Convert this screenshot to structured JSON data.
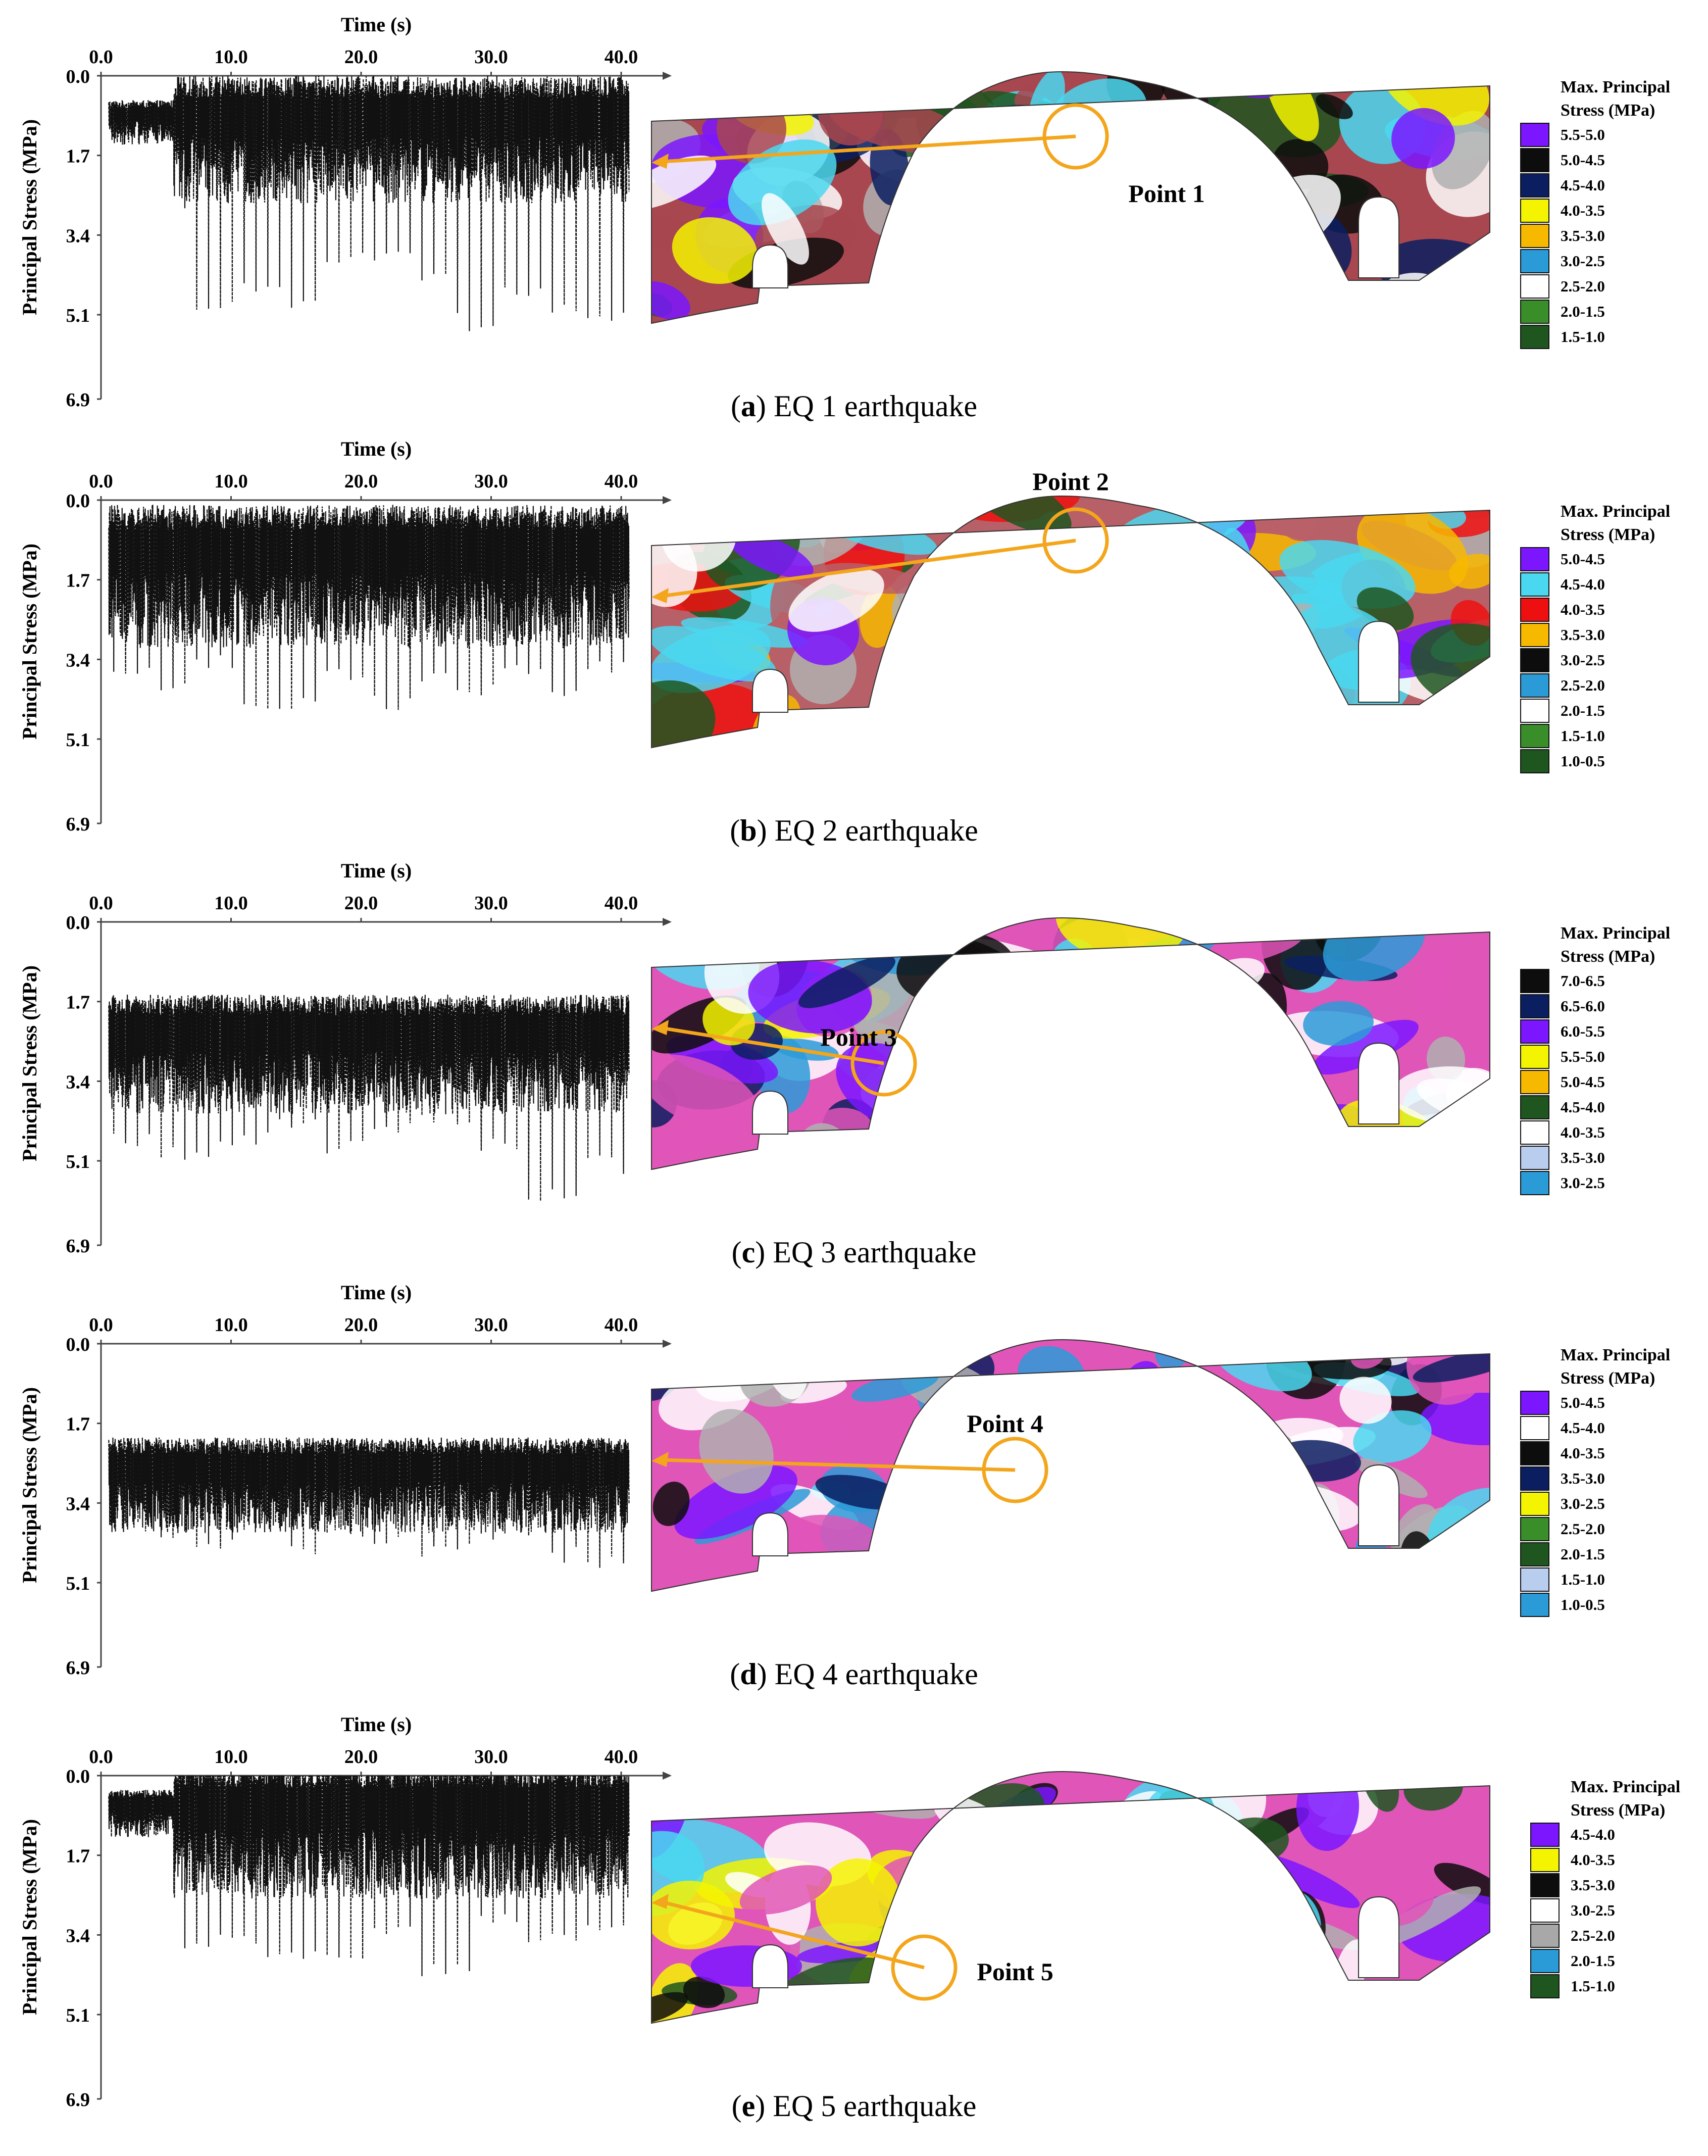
{
  "chart_data": [
    {
      "type": "line",
      "panel_letter": "a",
      "caption": "EQ 1 earthquake",
      "xlabel": "Time (s)",
      "ylabel": "Principal Stress (MPa)",
      "x_ticks": [
        "0.0",
        "10.0",
        "20.0",
        "30.0",
        "40.0"
      ],
      "y_ticks": [
        "0.0",
        "1.7",
        "3.4",
        "5.1",
        "6.9"
      ],
      "xlim": [
        0,
        40
      ],
      "ylim": [
        0,
        6.9
      ],
      "y_axis_inverted": true,
      "series": [
        {
          "name": "",
          "style": "dense-oscillation",
          "base_mean": 0.8,
          "typical_amplitude": 1.6,
          "peak_values": [
            3.5,
            3.0,
            5.0,
            4.7,
            5.2,
            4.0,
            4.0,
            4.5,
            5.5,
            4.8,
            5.2,
            5.3
          ]
        }
      ],
      "stress_contour": {
        "legend_title": [
          "Max. Principal",
          "Stress (MPa)"
        ],
        "annotation": "Point 1",
        "legend": [
          {
            "range": "5.5-5.0",
            "color": "#7b16ff"
          },
          {
            "range": "5.0-4.5",
            "color": "#0d0d0d"
          },
          {
            "range": "4.5-4.0",
            "color": "#0b1f60"
          },
          {
            "range": "4.0-3.5",
            "color": "#f4f400"
          },
          {
            "range": "3.5-3.0",
            "color": "#f7b800"
          },
          {
            "range": "3.0-2.5",
            "color": "#2b9bd8"
          },
          {
            "range": "2.5-2.0",
            "color": "#ffffff"
          },
          {
            "range": "2.0-1.5",
            "color": "#3a8e2a"
          },
          {
            "range": "1.5-1.0",
            "color": "#1f5620"
          }
        ]
      }
    },
    {
      "type": "line",
      "panel_letter": "b",
      "caption": "EQ 2 earthquake",
      "xlabel": "Time (s)",
      "ylabel": "Principal Stress (MPa)",
      "x_ticks": [
        "0.0",
        "10.0",
        "20.0",
        "30.0",
        "40.0"
      ],
      "y_ticks": [
        "0.0",
        "1.7",
        "3.4",
        "5.1",
        "6.9"
      ],
      "xlim": [
        0,
        40
      ],
      "ylim": [
        0,
        6.9
      ],
      "y_axis_inverted": true,
      "series": [
        {
          "name": "",
          "style": "dense-oscillation",
          "base_mean": 1.0,
          "typical_amplitude": 1.8,
          "peak_values": [
            3.8,
            4.1,
            3.6,
            4.6,
            4.5,
            3.9,
            4.5,
            4.0,
            4.2,
            3.8,
            4.3,
            3.7
          ]
        }
      ],
      "stress_contour": {
        "legend_title": [
          "Max. Principal",
          "Stress (MPa)"
        ],
        "annotation": "Point 2",
        "legend": [
          {
            "range": "5.0-4.5",
            "color": "#7b16ff"
          },
          {
            "range": "4.5-4.0",
            "color": "#4ad8f0"
          },
          {
            "range": "4.0-3.5",
            "color": "#ee1010"
          },
          {
            "range": "3.5-3.0",
            "color": "#f7b800"
          },
          {
            "range": "3.0-2.5",
            "color": "#0d0d0d"
          },
          {
            "range": "2.5-2.0",
            "color": "#2b9bd8"
          },
          {
            "range": "2.0-1.5",
            "color": "#ffffff"
          },
          {
            "range": "1.5-1.0",
            "color": "#3a8e2a"
          },
          {
            "range": "1.0-0.5",
            "color": "#1f5620"
          }
        ]
      }
    },
    {
      "type": "line",
      "panel_letter": "c",
      "caption": "EQ 3 earthquake",
      "xlabel": "Time (s)",
      "ylabel": "Principal Stress (MPa)",
      "x_ticks": [
        "0.0",
        "10.0",
        "20.0",
        "30.0",
        "40.0"
      ],
      "y_ticks": [
        "0.0",
        "1.7",
        "3.4",
        "5.1",
        "6.9"
      ],
      "xlim": [
        0,
        40
      ],
      "ylim": [
        0,
        6.9
      ],
      "y_axis_inverted": true,
      "series": [
        {
          "name": "",
          "style": "dense-oscillation",
          "base_mean": 2.3,
          "typical_amplitude": 1.5,
          "peak_values": [
            4.8,
            5.1,
            4.9,
            4.5,
            5.0,
            4.6,
            4.4,
            4.9,
            6.0,
            5.4
          ]
        }
      ],
      "stress_contour": {
        "legend_title": [
          "Max. Principal",
          "Stress (MPa)"
        ],
        "annotation": "Point 3",
        "legend": [
          {
            "range": "7.0-6.5",
            "color": "#0d0d0d"
          },
          {
            "range": "6.5-6.0",
            "color": "#0b1f60"
          },
          {
            "range": "6.0-5.5",
            "color": "#7b16ff"
          },
          {
            "range": "5.5-5.0",
            "color": "#f4f400"
          },
          {
            "range": "5.0-4.5",
            "color": "#f7b800"
          },
          {
            "range": "4.5-4.0",
            "color": "#1f5620"
          },
          {
            "range": "4.0-3.5",
            "color": "#ffffff"
          },
          {
            "range": "3.5-3.0",
            "color": "#b9cdef"
          },
          {
            "range": "3.0-2.5",
            "color": "#2b9bd8"
          }
        ]
      }
    },
    {
      "type": "line",
      "panel_letter": "d",
      "caption": "EQ 4 earthquake",
      "xlabel": "Time (s)",
      "ylabel": "Principal Stress (MPa)",
      "x_ticks": [
        "0.0",
        "10.0",
        "20.0",
        "30.0",
        "40.0"
      ],
      "y_ticks": [
        "0.0",
        "1.7",
        "3.4",
        "5.1",
        "6.9"
      ],
      "xlim": [
        0,
        40
      ],
      "ylim": [
        0,
        6.9
      ],
      "y_axis_inverted": true,
      "series": [
        {
          "name": "",
          "style": "dense-oscillation",
          "base_mean": 2.6,
          "typical_amplitude": 1.2,
          "peak_values": [
            3.8,
            4.2,
            4.4,
            4.0,
            4.5,
            4.2,
            4.3,
            4.6,
            4.4,
            4.1,
            4.7,
            4.8
          ]
        }
      ],
      "stress_contour": {
        "legend_title": [
          "Max. Principal",
          "Stress (MPa)"
        ],
        "annotation": "Point 4",
        "legend": [
          {
            "range": "5.0-4.5",
            "color": "#7b16ff"
          },
          {
            "range": "4.5-4.0",
            "color": "#ffffff"
          },
          {
            "range": "4.0-3.5",
            "color": "#0d0d0d"
          },
          {
            "range": "3.5-3.0",
            "color": "#0b1f60"
          },
          {
            "range": "3.0-2.5",
            "color": "#f4f400"
          },
          {
            "range": "2.5-2.0",
            "color": "#3a8e2a"
          },
          {
            "range": "2.0-1.5",
            "color": "#1f5620"
          },
          {
            "range": "1.5-1.0",
            "color": "#b9cdef"
          },
          {
            "range": "1.0-0.5",
            "color": "#2b9bd8"
          }
        ]
      }
    },
    {
      "type": "line",
      "panel_letter": "e",
      "caption": "EQ 5 earthquake",
      "xlabel": "Time (s)",
      "ylabel": "Principal Stress (MPa)",
      "x_ticks": [
        "0.0",
        "10.0",
        "20.0",
        "30.0",
        "40.0"
      ],
      "y_ticks": [
        "0.0",
        "1.7",
        "3.4",
        "5.1",
        "6.9"
      ],
      "xlim": [
        0,
        40
      ],
      "ylim": [
        0,
        6.9
      ],
      "y_axis_inverted": true,
      "series": [
        {
          "name": "",
          "style": "dense-oscillation",
          "base_mean": 0.6,
          "typical_amplitude": 1.7,
          "peak_values": [
            3.3,
            3.8,
            3.6,
            4.0,
            4.1,
            3.5,
            4.3,
            3.2,
            3.6,
            3.4
          ]
        }
      ],
      "stress_contour": {
        "legend_title": [
          "Max. Principal",
          "Stress (MPa)"
        ],
        "annotation": "Point 5",
        "legend": [
          {
            "range": "4.5-4.0",
            "color": "#7b16ff"
          },
          {
            "range": "4.0-3.5",
            "color": "#f4f400"
          },
          {
            "range": "3.5-3.0",
            "color": "#0d0d0d"
          },
          {
            "range": "3.0-2.5",
            "color": "#ffffff"
          },
          {
            "range": "2.5-2.0",
            "color": "#a8a8a8"
          },
          {
            "range": "2.0-1.5",
            "color": "#2b9bd8"
          },
          {
            "range": "1.5-1.0",
            "color": "#1f5620"
          }
        ]
      }
    }
  ]
}
